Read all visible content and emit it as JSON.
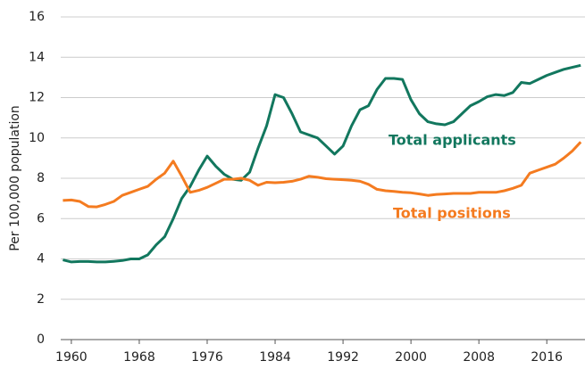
{
  "chart_data": {
    "type": "line",
    "y_label": "Per 100,000 population",
    "x": [
      1959,
      1960,
      1961,
      1962,
      1963,
      1964,
      1965,
      1966,
      1967,
      1968,
      1969,
      1970,
      1971,
      1972,
      1973,
      1974,
      1975,
      1976,
      1977,
      1978,
      1979,
      1980,
      1981,
      1982,
      1983,
      1984,
      1985,
      1986,
      1987,
      1988,
      1989,
      1990,
      1991,
      1992,
      1993,
      1994,
      1995,
      1996,
      1997,
      1998,
      1999,
      2000,
      2001,
      2002,
      2003,
      2004,
      2005,
      2006,
      2007,
      2008,
      2009,
      2010,
      2011,
      2012,
      2013,
      2014,
      2015,
      2016,
      2017,
      2018,
      2019,
      2020
    ],
    "series": [
      {
        "name": "Total applicants",
        "color": "#12775e",
        "values": [
          3.95,
          3.85,
          3.87,
          3.87,
          3.85,
          3.85,
          3.88,
          3.92,
          4.0,
          4.0,
          4.2,
          4.7,
          5.1,
          6.0,
          7.0,
          7.6,
          8.4,
          9.1,
          8.6,
          8.2,
          7.95,
          7.9,
          8.3,
          9.5,
          10.6,
          12.15,
          12.0,
          11.2,
          10.3,
          10.15,
          10.0,
          9.6,
          9.2,
          9.6,
          10.6,
          11.4,
          11.6,
          12.4,
          12.95,
          12.95,
          12.9,
          11.9,
          11.2,
          10.8,
          10.7,
          10.65,
          10.8,
          11.2,
          11.6,
          11.8,
          12.05,
          12.15,
          12.1,
          12.25,
          12.75,
          12.7,
          12.9,
          13.1,
          13.25,
          13.4,
          13.5,
          13.6
        ]
      },
      {
        "name": "Total positions",
        "color": "#f47b20",
        "values": [
          6.9,
          6.92,
          6.85,
          6.6,
          6.58,
          6.7,
          6.85,
          7.15,
          7.3,
          7.45,
          7.6,
          7.95,
          8.25,
          8.85,
          8.1,
          7.3,
          7.4,
          7.55,
          7.75,
          7.95,
          7.95,
          8.0,
          7.9,
          7.65,
          7.8,
          7.78,
          7.8,
          7.85,
          7.95,
          8.1,
          8.05,
          7.98,
          7.95,
          7.93,
          7.9,
          7.85,
          7.7,
          7.45,
          7.38,
          7.35,
          7.3,
          7.28,
          7.22,
          7.15,
          7.2,
          7.22,
          7.25,
          7.25,
          7.25,
          7.3,
          7.3,
          7.3,
          7.38,
          7.5,
          7.65,
          8.25,
          8.4,
          8.55,
          8.7,
          9.0,
          9.35,
          9.8
        ]
      }
    ],
    "xlim": [
      1958.75,
      2020.5
    ],
    "xticks": [
      1960,
      1968,
      1976,
      1984,
      1992,
      2000,
      2008,
      2016
    ],
    "ylim": [
      0,
      16
    ],
    "yticks": [
      0,
      2,
      4,
      6,
      8,
      10,
      12,
      14,
      16
    ],
    "grid": true
  }
}
